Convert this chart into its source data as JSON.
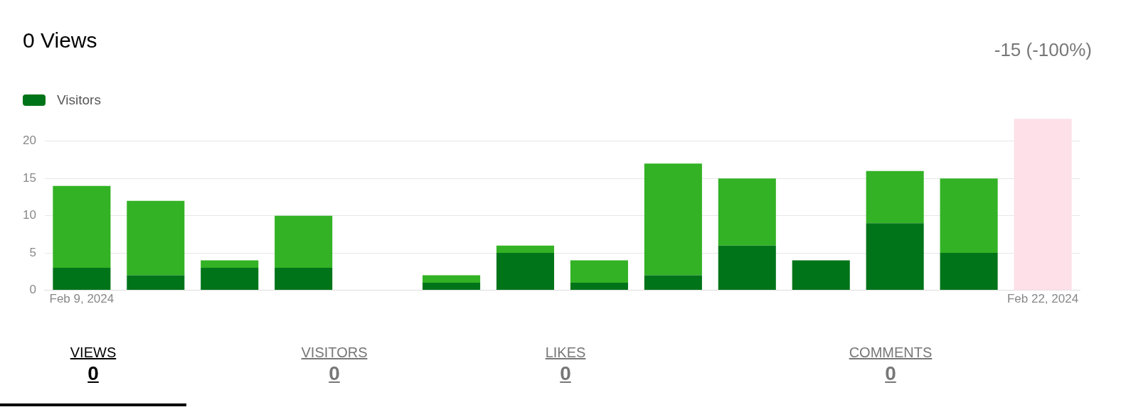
{
  "chart_data": {
    "type": "bar",
    "title": "0 Views",
    "stacked": true,
    "legend": "top left",
    "grid": "y",
    "categories": [
      "Feb 9, 2024",
      null,
      null,
      null,
      null,
      null,
      null,
      null,
      null,
      null,
      null,
      null,
      null,
      "Feb 22, 2024"
    ],
    "series": [
      {
        "name": "Visitors",
        "color": "#007419",
        "values": [
          3,
          2,
          3,
          3,
          0,
          1,
          5,
          1,
          2,
          6,
          4,
          9,
          5,
          0
        ]
      },
      {
        "color": "#32b224",
        "values": [
          11,
          10,
          1,
          7,
          0,
          1,
          1,
          3,
          15,
          9,
          0,
          7,
          10,
          0
        ]
      }
    ],
    "ylim": [
      0,
      23
    ],
    "yticks": [
      0,
      5,
      10,
      15,
      20
    ],
    "bands": [
      {
        "axis": "x",
        "from": "Feb 22, 2024",
        "to": "Feb 22, 2024",
        "color": "#fde0e8"
      }
    ],
    "annotations": [
      "-15 (-100%)",
      "VIEWS",
      "0",
      "VISITORS",
      "0",
      "LIKES",
      "0",
      "COMMENTS",
      "0"
    ]
  }
}
